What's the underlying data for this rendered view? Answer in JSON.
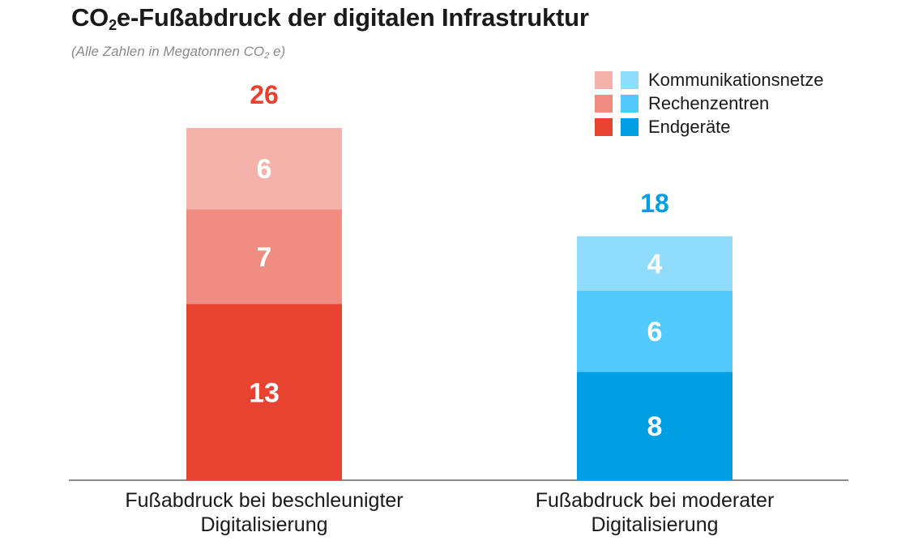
{
  "header": {
    "title_pre": "CO",
    "title_sub": "2",
    "title_post": "e-Fußabdruck der digitalen Infrastruktur",
    "subtitle_pre": "(Alle Zahlen in Megatonnen CO",
    "subtitle_sub": "2",
    "subtitle_post": " e)"
  },
  "legend": {
    "items": [
      {
        "label": "Kommunikationsnetze",
        "color_red": "#f5b2aa",
        "color_blue": "#90dcfc"
      },
      {
        "label": "Rechenzentren",
        "color_red": "#f08c81",
        "color_blue": "#52cafc"
      },
      {
        "label": "Endgeräte",
        "color_red": "#e84230",
        "color_blue": "#009fe3"
      }
    ]
  },
  "chart_data": {
    "type": "bar",
    "stacked": true,
    "title": "CO2e-Fußabdruck der digitalen Infrastruktur",
    "subtitle": "(Alle Zahlen in Megatonnen CO2 e)",
    "unit": "Megatonnen CO2e",
    "categories": [
      "Fußabdruck bei beschleunigter\nDigitalisierung",
      "Fußabdruck bei moderater\nDigitalisierung"
    ],
    "category_lines": [
      [
        "Fußabdruck bei beschleunigter",
        "Digitalisierung"
      ],
      [
        "Fußabdruck bei moderater",
        "Digitalisierung"
      ]
    ],
    "series": [
      {
        "name": "Endgeräte",
        "values": [
          13,
          8
        ],
        "colors": [
          "#e84230",
          "#009fe3"
        ]
      },
      {
        "name": "Rechenzentren",
        "values": [
          7,
          6
        ],
        "colors": [
          "#f08c81",
          "#52cafc"
        ]
      },
      {
        "name": "Kommunikationsnetze",
        "values": [
          6,
          4
        ],
        "colors": [
          "#f5b2aa",
          "#90dcfc"
        ]
      }
    ],
    "totals": [
      26,
      18
    ],
    "total_colors": [
      "#e8412e",
      "#009fe3"
    ],
    "ylim": [
      0,
      26
    ],
    "legend_position": "top-right",
    "grid": false
  }
}
